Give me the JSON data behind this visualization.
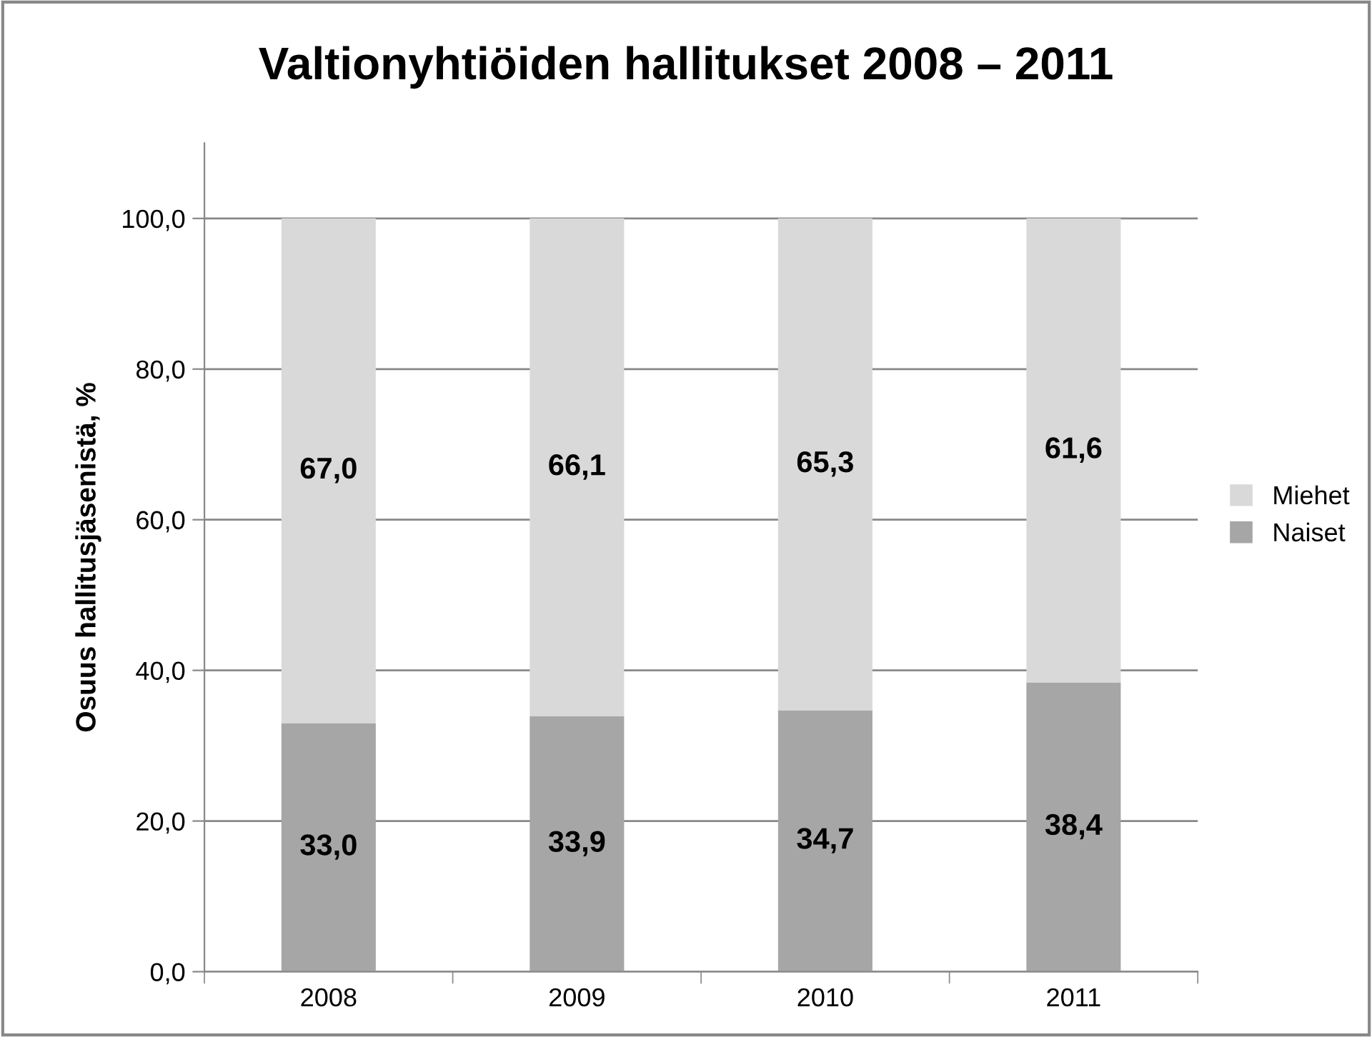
{
  "chart_data": {
    "type": "bar",
    "title": "Valtionyhtiöiden hallitukset 2008 – 2011",
    "ylabel": "Osuus hallitusjäsenistä, %",
    "categories": [
      "2008",
      "2009",
      "2010",
      "2011"
    ],
    "stacked": true,
    "series": [
      {
        "name": "Naiset",
        "color": "#a6a6a6",
        "values": [
          33.0,
          33.9,
          34.7,
          38.4
        ],
        "value_labels": [
          "33,0",
          "33,9",
          "34,7",
          "38,4"
        ]
      },
      {
        "name": "Miehet",
        "color": "#d9d9d9",
        "values": [
          67.0,
          66.1,
          65.3,
          61.6
        ],
        "value_labels": [
          "67,0",
          "66,1",
          "65,3",
          "61,6"
        ]
      }
    ],
    "ylim": [
      0,
      110
    ],
    "yticks": [
      {
        "value": 0,
        "label": "0,0"
      },
      {
        "value": 20,
        "label": "20,0"
      },
      {
        "value": 40,
        "label": "40,0"
      },
      {
        "value": 60,
        "label": "60,0"
      },
      {
        "value": 80,
        "label": "80,0"
      },
      {
        "value": 100,
        "label": "100,0"
      }
    ],
    "grid": "y",
    "legend": "right"
  }
}
